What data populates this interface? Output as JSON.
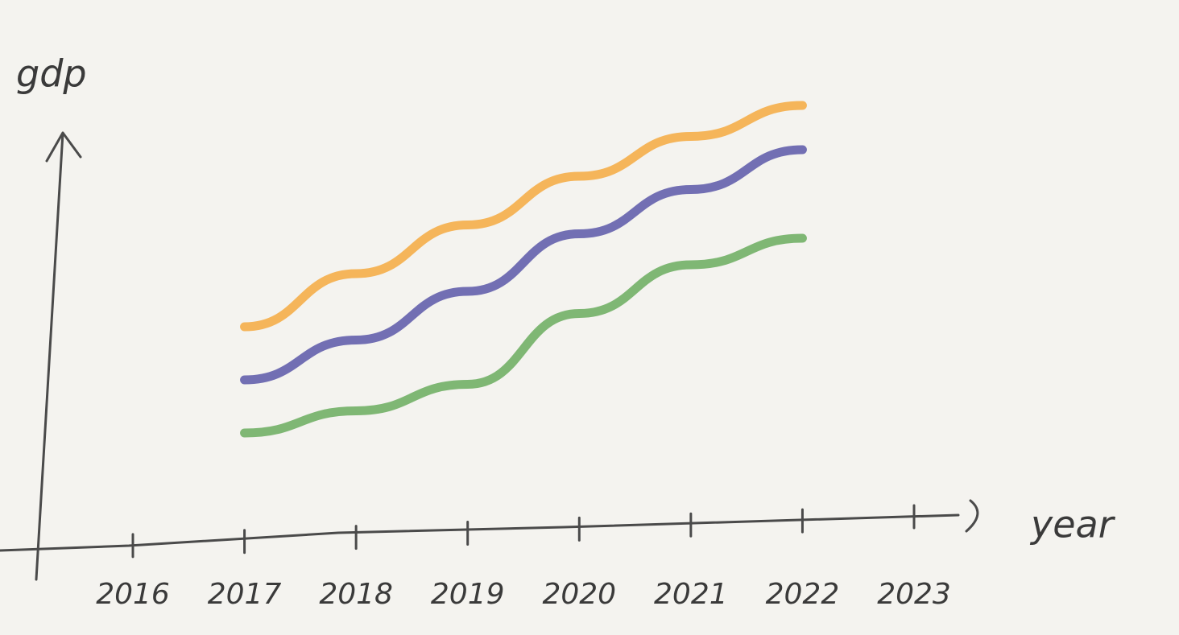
{
  "chart_data": {
    "type": "line",
    "y_label": "gdp",
    "x_label": "year",
    "categories": [
      "2016",
      "2017",
      "2018",
      "2019",
      "2020",
      "2021",
      "2022",
      "2023"
    ],
    "ylim": [
      0,
      100
    ],
    "series": [
      {
        "color": "#f4a93f",
        "values": [
          null,
          48,
          60,
          71,
          82,
          91,
          98,
          null
        ]
      },
      {
        "color": "#5b57a8",
        "values": [
          null,
          36,
          45,
          56,
          69,
          79,
          88,
          null
        ]
      },
      {
        "color": "#6aab5e",
        "values": [
          null,
          24,
          29,
          35,
          51,
          62,
          68,
          null
        ]
      }
    ]
  }
}
